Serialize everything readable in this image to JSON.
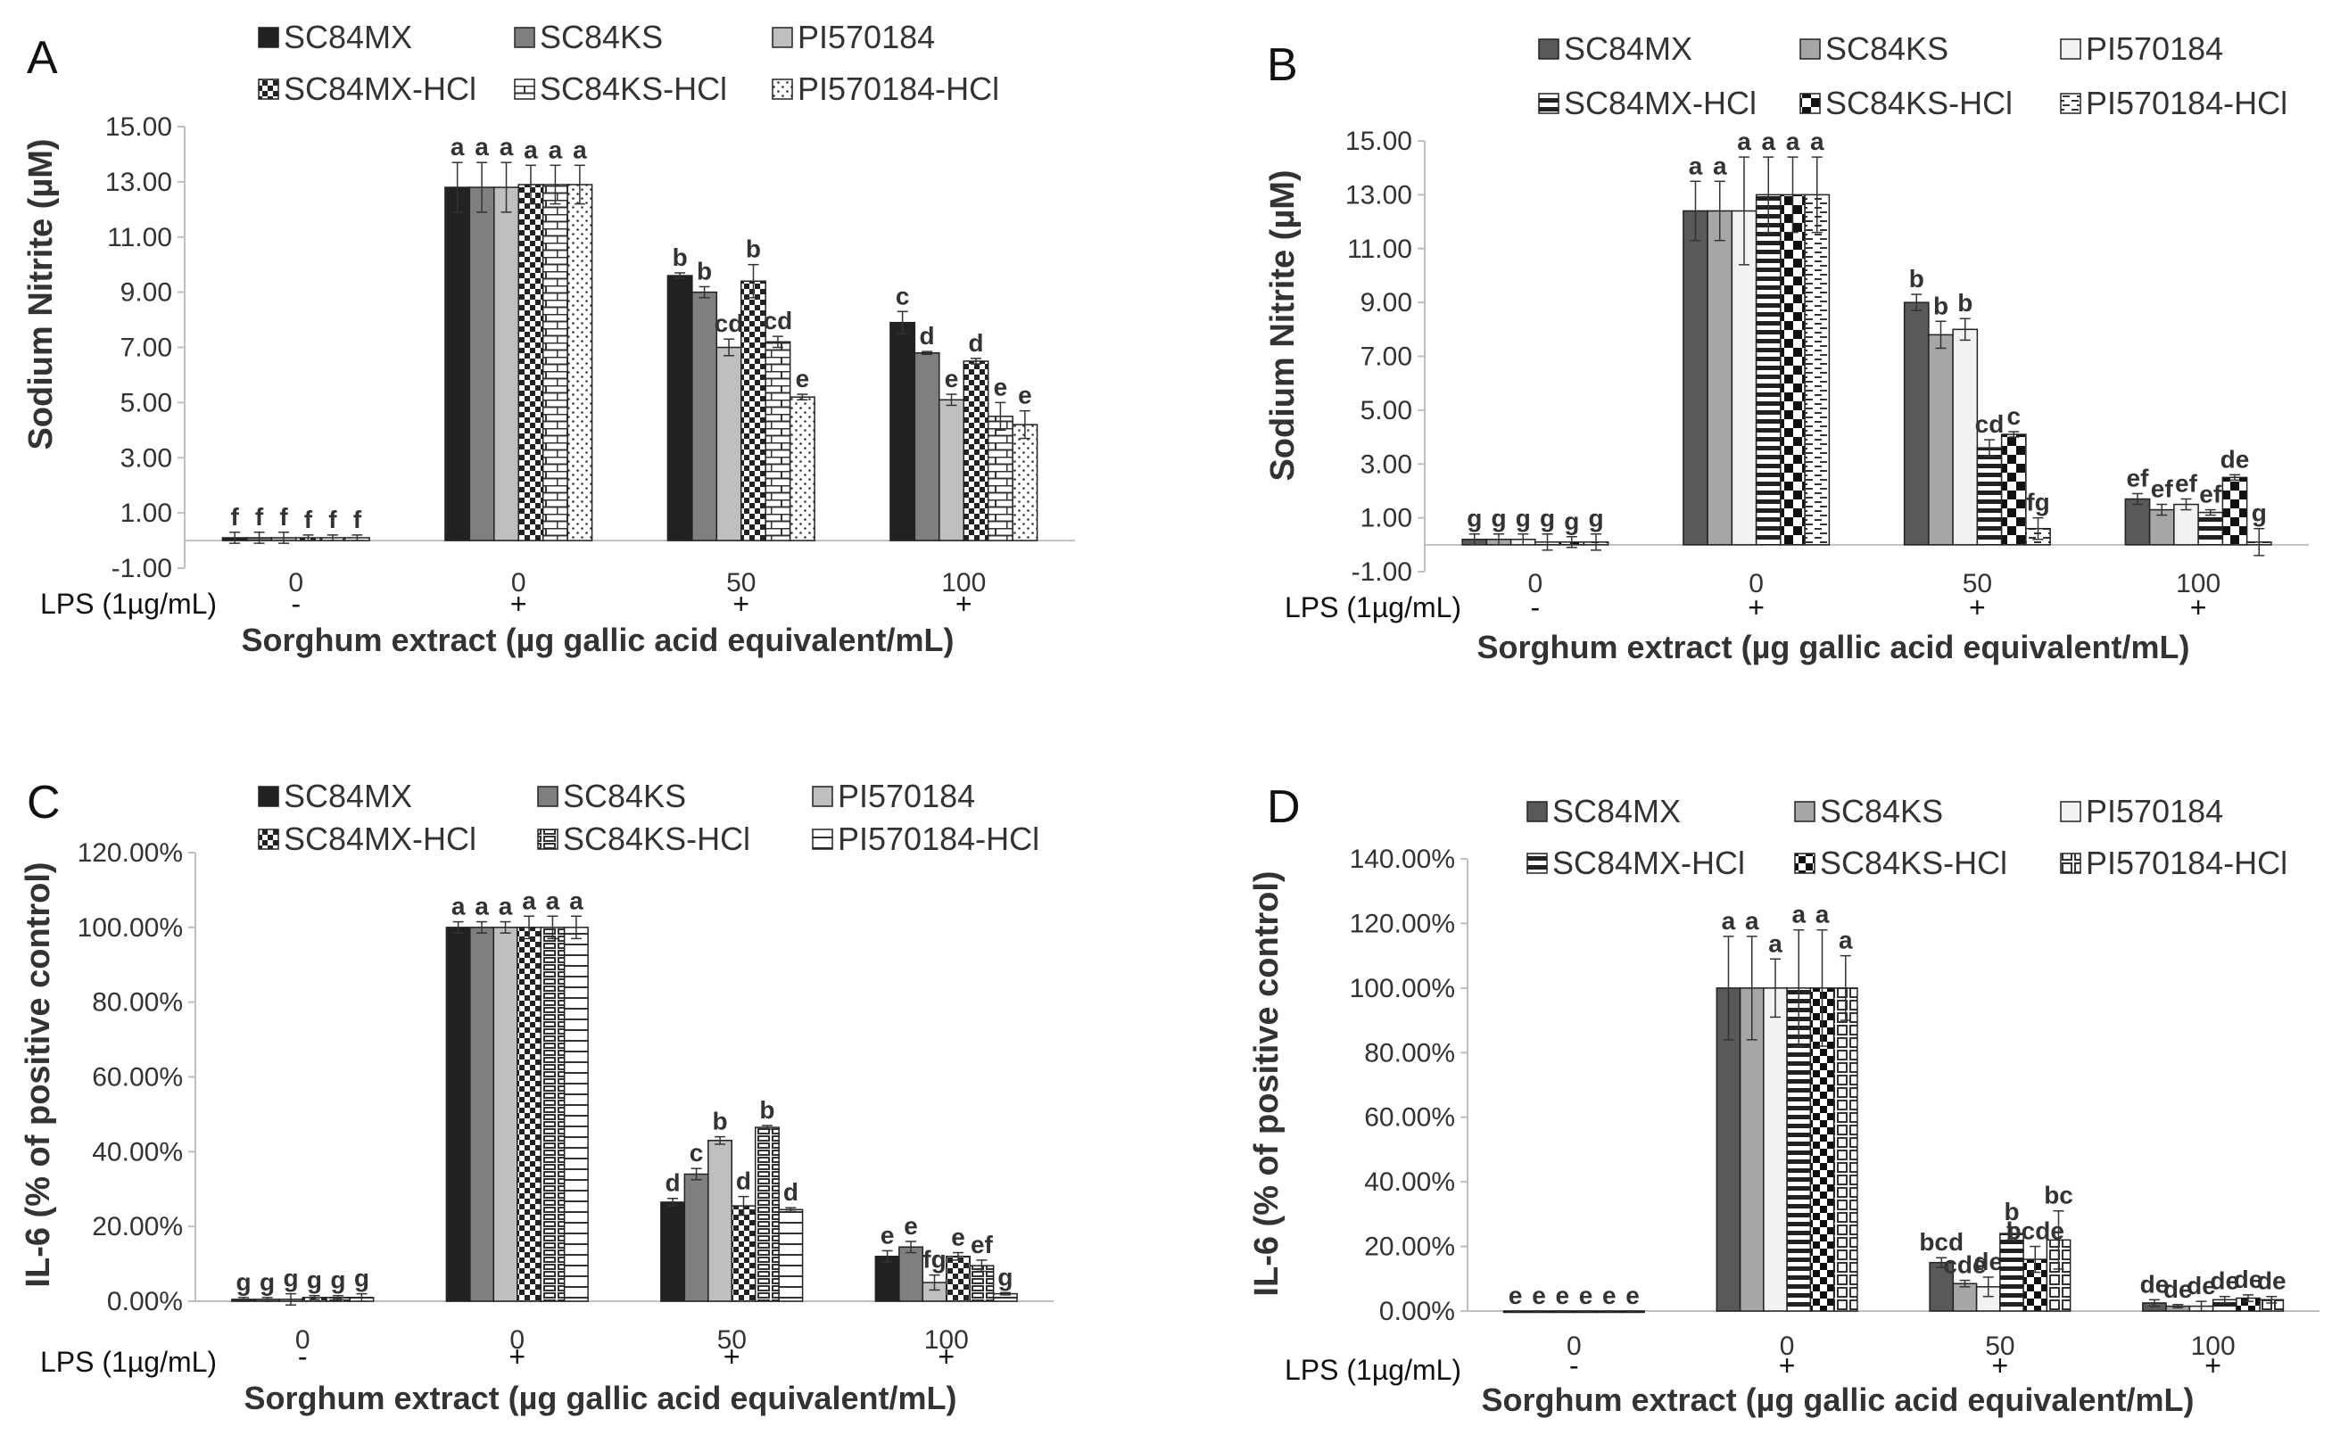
{
  "lps_label": "LPS (1µg/mL)",
  "colors": {
    "SC84MX": "#222222",
    "SC84KS": "#7f7f7f",
    "PI570184": "#bfbfbf",
    "SC84MX_B": "#595959",
    "SC84KS_B": "#a6a6a6",
    "PI570184_B": "#f2f2f2",
    "axis": "#bfbfbf"
  },
  "chart_data": [
    {
      "panel": "A",
      "type": "bar",
      "categories": [
        "0",
        "0",
        "50",
        "100"
      ],
      "lps": [
        "-",
        "+",
        "+",
        "+"
      ],
      "xlabel": "Sorghum extract (µg gallic acid equivalent/mL)",
      "ylabel": "Sodium Nitrite (µM)",
      "ylim": [
        -1.0,
        15.0
      ],
      "yticks": [
        "15.00",
        "13.00",
        "11.00",
        "9.00",
        "7.00",
        "5.00",
        "3.00",
        "1.00",
        "-1.00"
      ],
      "legend": [
        "SC84MX",
        "SC84KS",
        "PI570184",
        "SC84MX-HCl",
        "SC84KS-HCl",
        "PI570184-HCl"
      ],
      "series": [
        {
          "name": "SC84MX",
          "values": [
            0.1,
            12.8,
            9.6,
            7.9
          ],
          "errors": [
            0.2,
            0.9,
            0.1,
            0.4
          ],
          "sig": [
            "f",
            "a",
            "b",
            "c"
          ]
        },
        {
          "name": "SC84KS",
          "values": [
            0.1,
            12.8,
            9.0,
            6.8
          ],
          "errors": [
            0.2,
            0.9,
            0.2,
            0.05
          ],
          "sig": [
            "f",
            "a",
            "b",
            "d"
          ]
        },
        {
          "name": "PI570184",
          "values": [
            0.1,
            12.8,
            7.0,
            5.1
          ],
          "errors": [
            0.2,
            0.9,
            0.3,
            0.2
          ],
          "sig": [
            "f",
            "a",
            "cd",
            "e"
          ]
        },
        {
          "name": "SC84MX-HCl",
          "values": [
            0.1,
            12.9,
            9.4,
            6.5
          ],
          "errors": [
            0.1,
            0.7,
            0.6,
            0.1
          ],
          "sig": [
            "f",
            "a",
            "b",
            "d"
          ]
        },
        {
          "name": "SC84KS-HCl",
          "values": [
            0.1,
            12.9,
            7.2,
            4.5
          ],
          "errors": [
            0.1,
            0.7,
            0.2,
            0.5
          ],
          "sig": [
            "f",
            "a",
            "cd",
            "e"
          ]
        },
        {
          "name": "PI570184-HCl",
          "values": [
            0.1,
            12.9,
            5.2,
            4.2
          ],
          "errors": [
            0.1,
            0.7,
            0.1,
            0.5
          ],
          "sig": [
            "f",
            "a",
            "e",
            "e"
          ]
        }
      ]
    },
    {
      "panel": "B",
      "type": "bar",
      "categories": [
        "0",
        "0",
        "50",
        "100"
      ],
      "lps": [
        "-",
        "+",
        "+",
        "+"
      ],
      "xlabel": "Sorghum extract (µg gallic acid equivalent/mL)",
      "ylabel": "Sodium Nitrite (µM)",
      "ylim": [
        -1.0,
        15.0
      ],
      "yticks": [
        "15.00",
        "13.00",
        "11.00",
        "9.00",
        "7.00",
        "5.00",
        "3.00",
        "1.00",
        "-1.00"
      ],
      "legend": [
        "SC84MX",
        "SC84KS",
        "PI570184",
        "SC84MX-HCl",
        "SC84KS-HCl",
        "PI570184-HCl"
      ],
      "series": [
        {
          "name": "SC84MX",
          "values": [
            0.2,
            12.4,
            9.0,
            1.7
          ],
          "errors": [
            0.2,
            1.1,
            0.3,
            0.2
          ],
          "sig": [
            "g",
            "a",
            "b",
            "ef"
          ]
        },
        {
          "name": "SC84KS",
          "values": [
            0.2,
            12.4,
            7.8,
            1.3
          ],
          "errors": [
            0.2,
            1.1,
            0.5,
            0.2
          ],
          "sig": [
            "g",
            "a",
            "b",
            "ef"
          ]
        },
        {
          "name": "PI570184",
          "values": [
            0.2,
            12.4,
            8.0,
            1.5
          ],
          "errors": [
            0.2,
            2.0,
            0.4,
            0.2
          ],
          "sig": [
            "g",
            "a",
            "b",
            "ef"
          ]
        },
        {
          "name": "SC84MX-HCl",
          "values": [
            0.1,
            13.0,
            3.6,
            1.2
          ],
          "errors": [
            0.3,
            1.4,
            0.3,
            0.1
          ],
          "sig": [
            "g",
            "a",
            "cd",
            "ef"
          ]
        },
        {
          "name": "SC84KS-HCl",
          "values": [
            0.1,
            13.0,
            4.1,
            2.5
          ],
          "errors": [
            0.2,
            1.4,
            0.1,
            0.1
          ],
          "sig": [
            "g",
            "a",
            "c",
            "de"
          ]
        },
        {
          "name": "PI570184-HCl",
          "values": [
            0.1,
            13.0,
            0.6,
            0.1
          ],
          "errors": [
            0.3,
            1.4,
            0.4,
            0.5
          ],
          "sig": [
            "g",
            "a",
            "fg",
            "g"
          ]
        }
      ]
    },
    {
      "panel": "C",
      "type": "bar",
      "categories": [
        "0",
        "0",
        "50",
        "100"
      ],
      "lps": [
        "-",
        "+",
        "+",
        "+"
      ],
      "xlabel": "Sorghum extract (µg gallic acid equivalent/mL)",
      "ylabel": "IL-6 (% of positive control)",
      "ylim": [
        0,
        120
      ],
      "yticks": [
        "120.00%",
        "100.00%",
        "80.00%",
        "60.00%",
        "40.00%",
        "20.00%",
        "0.00%"
      ],
      "legend": [
        "SC84MX",
        "SC84KS",
        "PI570184",
        "SC84MX-HCl",
        "SC84KS-HCl",
        "PI570184-HCl"
      ],
      "series": [
        {
          "name": "SC84MX",
          "values": [
            0.5,
            100,
            26.5,
            12
          ],
          "errors": [
            0.5,
            1.5,
            1.0,
            1.5
          ],
          "sig": [
            "g",
            "a",
            "d",
            "e"
          ]
        },
        {
          "name": "SC84KS",
          "values": [
            0.5,
            100,
            34,
            14.5
          ],
          "errors": [
            0.5,
            1.5,
            1.5,
            1.5
          ],
          "sig": [
            "g",
            "a",
            "c",
            "e"
          ]
        },
        {
          "name": "PI570184",
          "values": [
            0.5,
            100,
            43,
            5
          ],
          "errors": [
            1.5,
            1.5,
            1.0,
            2.0
          ],
          "sig": [
            "g",
            "a",
            "b",
            "fg"
          ]
        },
        {
          "name": "SC84MX-HCl",
          "values": [
            1.0,
            100,
            25.5,
            12
          ],
          "errors": [
            0.5,
            3.0,
            2.5,
            1.0
          ],
          "sig": [
            "g",
            "a",
            "d",
            "e"
          ]
        },
        {
          "name": "SC84KS-HCl",
          "values": [
            1.0,
            100,
            46.5,
            9.5
          ],
          "errors": [
            0.5,
            3.0,
            0.5,
            1.5
          ],
          "sig": [
            "g",
            "a",
            "b",
            "ef"
          ]
        },
        {
          "name": "PI570184-HCl",
          "values": [
            1.0,
            100,
            24.5,
            2
          ],
          "errors": [
            1.0,
            3.0,
            0.5,
            0.3
          ],
          "sig": [
            "g",
            "a",
            "d",
            "g"
          ]
        }
      ]
    },
    {
      "panel": "D",
      "type": "bar",
      "categories": [
        "0",
        "0",
        "50",
        "100"
      ],
      "lps": [
        "-",
        "+",
        "+",
        "+"
      ],
      "xlabel": "Sorghum extract (µg gallic acid equivalent/mL)",
      "ylabel": "IL-6 (% of positive control)",
      "ylim": [
        0,
        140
      ],
      "yticks": [
        "140.00%",
        "120.00%",
        "100.00%",
        "80.00%",
        "60.00%",
        "40.00%",
        "20.00%",
        "0.00%"
      ],
      "legend": [
        "SC84MX",
        "SC84KS",
        "PI570184",
        "SC84MX-HCl",
        "SC84KS-HCl",
        "PI570184-HCl"
      ],
      "series": [
        {
          "name": "SC84MX",
          "values": [
            0,
            100,
            15,
            2.5
          ],
          "errors": [
            0,
            16,
            1.5,
            1.0
          ],
          "sig": [
            "e",
            "a",
            "bcd",
            "de"
          ]
        },
        {
          "name": "SC84KS",
          "values": [
            0,
            100,
            8.5,
            1.5
          ],
          "errors": [
            0,
            16,
            1.0,
            0.5
          ],
          "sig": [
            "e",
            "a",
            "cde",
            "de"
          ]
        },
        {
          "name": "PI570184",
          "values": [
            0,
            100,
            7.5,
            1.5
          ],
          "errors": [
            0,
            9,
            3.0,
            1.5
          ],
          "sig": [
            "e",
            "a",
            "de",
            "de"
          ]
        },
        {
          "name": "SC84MX-HCl",
          "values": [
            0,
            100,
            24,
            3.5
          ],
          "errors": [
            0,
            18,
            2.0,
            1.0
          ],
          "sig": [
            "e",
            "a",
            "b",
            "de"
          ]
        },
        {
          "name": "SC84KS-HCl",
          "values": [
            0,
            100,
            16,
            4.0
          ],
          "errors": [
            0,
            18,
            4.0,
            1.0
          ],
          "sig": [
            "e",
            "a",
            "bcde",
            "de"
          ]
        },
        {
          "name": "PI570184-HCl",
          "values": [
            0,
            100,
            22,
            3.5
          ],
          "errors": [
            0,
            10,
            9.0,
            1.0
          ],
          "sig": [
            "e",
            "a",
            "bc",
            "de"
          ]
        }
      ]
    }
  ]
}
